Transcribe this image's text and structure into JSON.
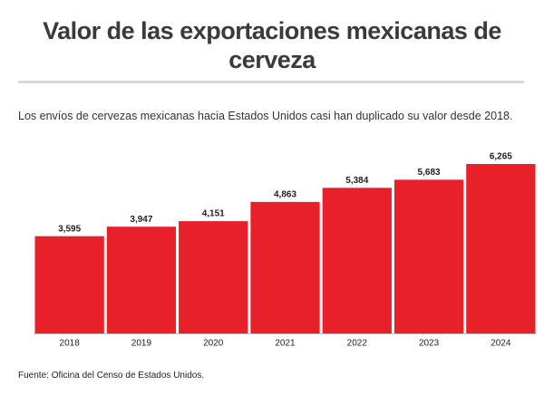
{
  "chart_data": {
    "type": "bar",
    "title": "Valor de las exportaciones mexicanas de cerveza",
    "subtitle": "Los envíos de cervezas mexicanas hacia Estados Unidos casi han duplicado su valor desde 2018.",
    "source": "Fuente: Oficina del Censo de Estados Unidos.",
    "categories": [
      "2018",
      "2019",
      "2020",
      "2021",
      "2022",
      "2023",
      "2024"
    ],
    "values": [
      3595,
      3947,
      4151,
      4863,
      5384,
      5683,
      6265
    ],
    "value_labels": [
      "3,595",
      "3,947",
      "4,151",
      "4,863",
      "5,384",
      "5,683",
      "6,265"
    ],
    "color": "#e8202a"
  }
}
